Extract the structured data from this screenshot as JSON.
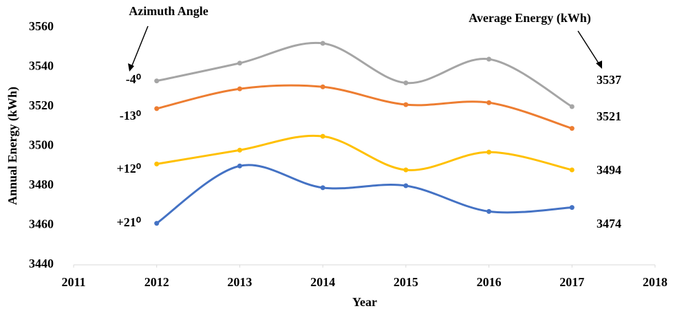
{
  "chart_data": {
    "type": "line",
    "x_label": "Year",
    "y_label": "Annual Energy (kWh)",
    "annotations": {
      "left": "Azimuth Angle",
      "right": "Average Energy (kWh)"
    },
    "x": [
      2012,
      2013,
      2014,
      2015,
      2016,
      2017
    ],
    "xlim": [
      2011,
      2018
    ],
    "xticks": [
      2011,
      2012,
      2013,
      2014,
      2015,
      2016,
      2017,
      2018
    ],
    "ylim": [
      3440,
      3560
    ],
    "yticks": [
      3440,
      3460,
      3480,
      3500,
      3520,
      3540,
      3560
    ],
    "grid": false,
    "series": [
      {
        "name": "-4⁰",
        "color": "#a5a5a5",
        "values": [
          3533,
          3542,
          3552,
          3532,
          3544,
          3520
        ],
        "average": 3537
      },
      {
        "name": "-13⁰",
        "color": "#ed7d31",
        "values": [
          3519,
          3529,
          3530,
          3521,
          3522,
          3509
        ],
        "average": 3521
      },
      {
        "name": "+12⁰",
        "color": "#ffc000",
        "values": [
          3491,
          3498,
          3505,
          3488,
          3497,
          3488
        ],
        "average": 3494
      },
      {
        "name": "+21⁰",
        "color": "#4472c4",
        "values": [
          3461,
          3490,
          3479,
          3480,
          3467,
          3469
        ],
        "average": 3474
      }
    ]
  }
}
